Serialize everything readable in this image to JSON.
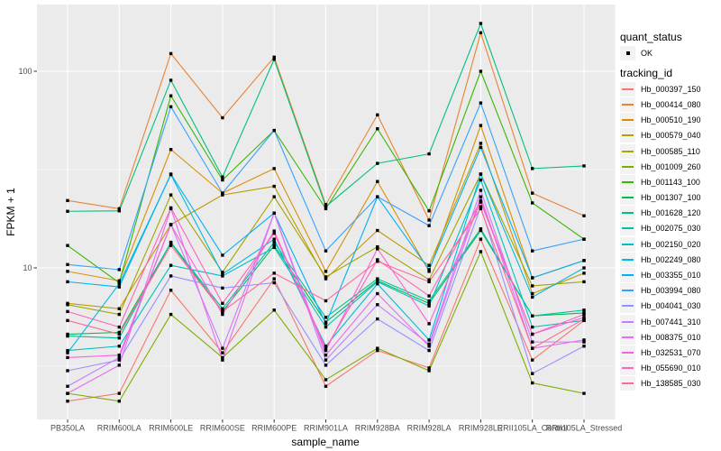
{
  "chart_data": {
    "type": "line",
    "title": "",
    "xlabel": "sample_name",
    "ylabel": "FPKM + 1",
    "y_scale": "log10",
    "ylim": [
      1.7,
      219
    ],
    "y_ticks": [
      100,
      10
    ],
    "y_tick_labels": [
      "100",
      "10"
    ],
    "grid": true,
    "legend_position": "right",
    "panel_bg": "#EBEBEB",
    "grid_color": "#FFFFFF",
    "point_color": "#000000",
    "axis_text_color": "#4D4D4D",
    "legend_key_bg": "#F2F2F2",
    "categories": [
      "PB350LA",
      "RRIM600LA",
      "RRIM600LE",
      "RRIM600SE",
      "RRIM600PE",
      "RRIM901LA",
      "RRIM928BA",
      "RRIM928LA",
      "RRIM928LE",
      "RRII105LA_Control",
      "RRII105LA_Stressed"
    ],
    "legend": {
      "quant_status_title": "quant_status",
      "quant_status_items": [
        "OK"
      ],
      "tracking_id_title": "tracking_id"
    },
    "series": [
      {
        "name": "Hb_000397_150",
        "color": "#F8766D",
        "values": [
          2.1,
          2.3,
          7.7,
          3.7,
          8.8,
          2.5,
          3.8,
          3.1,
          14,
          3.4,
          5.4
        ]
      },
      {
        "name": "Hb_000414_080",
        "color": "#EA8331",
        "values": [
          22,
          20,
          123,
          58,
          118,
          21,
          60,
          17.5,
          157,
          24,
          18.4
        ]
      },
      {
        "name": "Hb_000510_190",
        "color": "#D89000",
        "values": [
          9.6,
          8.6,
          40,
          24,
          32,
          9.6,
          27.5,
          9.6,
          53,
          8.9,
          10.9
        ]
      },
      {
        "name": "Hb_000579_040",
        "color": "#C09B00",
        "values": [
          6.6,
          6.2,
          16.6,
          23.5,
          26,
          8.8,
          15.5,
          10.3,
          43,
          7.4,
          9.4
        ]
      },
      {
        "name": "Hb_000585_110",
        "color": "#A3A500",
        "values": [
          6.5,
          5.8,
          23.5,
          9.5,
          23,
          9,
          12.8,
          8.7,
          30,
          8.1,
          8.5
        ]
      },
      {
        "name": "Hb_001009_260",
        "color": "#7CAE00",
        "values": [
          2.3,
          2.1,
          5.8,
          3.5,
          6.1,
          2.7,
          3.9,
          3,
          12.1,
          2.6,
          2.3
        ]
      },
      {
        "name": "Hb_001143_100",
        "color": "#39B600",
        "values": [
          13,
          8.4,
          75,
          28,
          50,
          20,
          51,
          19.5,
          100,
          21.4,
          14
        ]
      },
      {
        "name": "Hb_001307_100",
        "color": "#00BB4E",
        "values": [
          4.6,
          4.7,
          13.4,
          6,
          13,
          5.3,
          8.6,
          6.6,
          15.5,
          5.7,
          5.9
        ]
      },
      {
        "name": "Hb_001628_120",
        "color": "#00BF7D",
        "values": [
          19.4,
          19.5,
          90,
          29,
          115,
          20.5,
          34,
          38,
          175,
          32,
          33
        ]
      },
      {
        "name": "Hb_002075_030",
        "color": "#00C1A3",
        "values": [
          4.5,
          4.4,
          13.5,
          6.2,
          13.5,
          5.6,
          8.8,
          6.8,
          15.8,
          5.7,
          6.1
        ]
      },
      {
        "name": "Hb_002150_020",
        "color": "#00BFC4",
        "values": [
          3.8,
          4,
          10.3,
          9.1,
          12.7,
          5,
          8.5,
          6.4,
          28,
          5,
          5.4
        ]
      },
      {
        "name": "Hb_002249_080",
        "color": "#00BAE0",
        "values": [
          3.7,
          8.3,
          29.8,
          9.3,
          14,
          4,
          8.3,
          4.3,
          30,
          7.1,
          10
        ]
      },
      {
        "name": "Hb_003355_010",
        "color": "#00B0F6",
        "values": [
          8.5,
          8,
          30,
          11.6,
          19,
          5.2,
          23,
          9.8,
          41,
          8.9,
          10.9
        ]
      },
      {
        "name": "Hb_003994_080",
        "color": "#35A2FF",
        "values": [
          10.4,
          9.8,
          66,
          24,
          50,
          12.2,
          23,
          16.4,
          69,
          12.2,
          14
        ]
      },
      {
        "name": "Hb_004041_030",
        "color": "#9590FF",
        "values": [
          3,
          3.4,
          9.1,
          7.9,
          8.4,
          3.2,
          5.5,
          3.8,
          20.5,
          2.9,
          4
        ]
      },
      {
        "name": "Hb_007441_310",
        "color": "#C77CFF",
        "values": [
          2.5,
          3.5,
          16.6,
          3.9,
          19,
          3.4,
          6.5,
          4.1,
          24.8,
          4.2,
          4.2
        ]
      },
      {
        "name": "Hb_008375_010",
        "color": "#E76BF3",
        "values": [
          2.3,
          3.2,
          20,
          3.4,
          19,
          3.6,
          7.4,
          4,
          23,
          3.9,
          4.3
        ]
      },
      {
        "name": "Hb_032531_070",
        "color": "#FA62DB",
        "values": [
          3.5,
          3.6,
          16.6,
          5.8,
          15.4,
          3.8,
          12.5,
          5.2,
          21.6,
          4.6,
          5.6
        ]
      },
      {
        "name": "Hb_055690_010",
        "color": "#FF62BC",
        "values": [
          6,
          5,
          20.2,
          6.6,
          15,
          3.9,
          11,
          7.2,
          22,
          4.6,
          5.8
        ]
      },
      {
        "name": "Hb_138585_030",
        "color": "#FF6A98",
        "values": [
          5.4,
          4.6,
          13,
          6,
          9.4,
          6.8,
          10.8,
          8.5,
          20,
          3.9,
          5.5
        ]
      }
    ]
  }
}
